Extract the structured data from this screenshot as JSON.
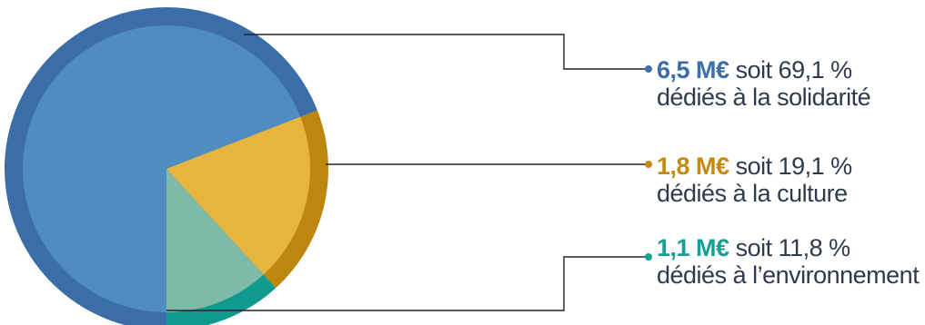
{
  "chart_data": {
    "type": "pie",
    "slices": [
      {
        "amount": "6,5 M€",
        "text": "soit 69,1 %",
        "description": "dédiés à la solidarité",
        "value": 69.1,
        "outer_color": "#3b6ea8",
        "inner_color": "#4f8dc0",
        "amount_color": "#3c6fa9"
      },
      {
        "amount": "1,8 M€",
        "text": "soit 19,1 %",
        "description": "dédiés à la culture",
        "value": 19.1,
        "outer_color": "#bd870f",
        "inner_color": "#e8b440",
        "amount_color": "#c48a12"
      },
      {
        "amount": "1,1 M€",
        "text": "soit 11,8 %",
        "description": "dédiés à l’environnement",
        "value": 11.8,
        "outer_color": "#0f9a90",
        "inner_color": "#7fbaa8",
        "amount_color": "#13a097"
      }
    ]
  }
}
